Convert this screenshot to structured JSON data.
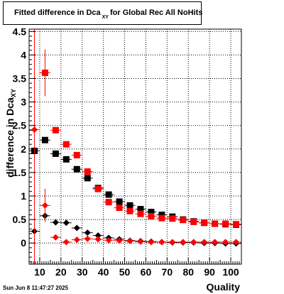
{
  "title": {
    "main": "Fitted difference in Dca",
    "subscript": "XY",
    "rest": "for Global Rec All NoHits"
  },
  "axes": {
    "ylabel_main": "difference in Dca",
    "ylabel_subscript": "XY",
    "xlabel": "Quality",
    "x_ticks": [
      "10",
      "20",
      "30",
      "40",
      "50",
      "60",
      "70",
      "80",
      "90",
      "100"
    ],
    "y_ticks": [
      "0",
      "0.5",
      "1",
      "1.5",
      "2",
      "2.5",
      "3",
      "3.5",
      "4",
      "4.5"
    ]
  },
  "timestamp": "Sun Jun  8 11:47:27 2025",
  "chart_data": {
    "type": "scatter",
    "xlim": [
      5,
      105
    ],
    "ylim": [
      -0.45,
      4.55
    ],
    "grid": true,
    "x": [
      7.5,
      12.5,
      17.5,
      22.5,
      27.5,
      32.5,
      37.5,
      42.5,
      47.5,
      52.5,
      57.5,
      62.5,
      67.5,
      72.5,
      77.5,
      82.5,
      87.5,
      92.5,
      97.5,
      102.5
    ],
    "series": [
      {
        "marker": "square",
        "color": "#000000",
        "values": [
          1.96,
          2.19,
          1.9,
          1.78,
          1.57,
          1.38,
          1.17,
          1.03,
          0.88,
          0.8,
          0.72,
          0.66,
          0.6,
          0.56,
          0.5,
          0.46,
          0.43,
          0.41,
          0.4,
          0.39
        ],
        "errors": [
          0.03,
          0.06,
          0.03,
          0.03,
          0.02,
          0.02,
          0.02,
          0.02,
          0.02,
          0.02,
          0.02,
          0.02,
          0.02,
          0.02,
          0.02,
          0.02,
          0.02,
          0.02,
          0.02,
          0.02
        ]
      },
      {
        "marker": "square",
        "color": "#ff0000",
        "values": [
          null,
          3.62,
          2.4,
          2.1,
          1.87,
          1.52,
          1.15,
          0.87,
          0.75,
          0.68,
          0.62,
          0.57,
          0.53,
          0.52,
          0.49,
          0.45,
          0.43,
          0.41,
          0.41,
          0.4
        ],
        "errors": [
          null,
          0.5,
          0.03,
          0.03,
          0.03,
          0.03,
          0.02,
          0.02,
          0.02,
          0.02,
          0.02,
          0.02,
          0.02,
          0.02,
          0.02,
          0.02,
          0.02,
          0.02,
          0.02,
          0.02
        ]
      },
      {
        "marker": "diamond",
        "color": "#000000",
        "values": [
          0.25,
          0.58,
          0.44,
          0.43,
          0.32,
          0.22,
          0.16,
          0.11,
          0.08,
          0.05,
          0.04,
          0.03,
          0.02,
          0.01,
          0.01,
          0.01,
          0.0,
          0.0,
          -0.01,
          -0.01
        ],
        "errors": [
          0.03,
          0.04,
          0.02,
          0.02,
          0.02,
          0.02,
          0.02,
          0.01,
          0.01,
          0.01,
          0.01,
          0.01,
          0.01,
          0.01,
          0.01,
          0.01,
          0.01,
          0.01,
          0.01,
          0.01
        ]
      },
      {
        "marker": "diamond",
        "color": "#ff0000",
        "values": [
          2.41,
          0.8,
          0.12,
          0.02,
          0.07,
          0.09,
          0.08,
          0.06,
          0.05,
          0.04,
          0.03,
          0.02,
          0.02,
          0.02,
          0.02,
          0.02,
          0.02,
          0.02,
          0.02,
          0.02
        ],
        "errors": [
          2.9,
          0.35,
          0.03,
          0.02,
          0.02,
          0.02,
          0.02,
          0.02,
          0.01,
          0.01,
          0.01,
          0.01,
          0.01,
          0.01,
          0.01,
          0.01,
          0.01,
          0.01,
          0.01,
          0.01
        ]
      }
    ]
  }
}
